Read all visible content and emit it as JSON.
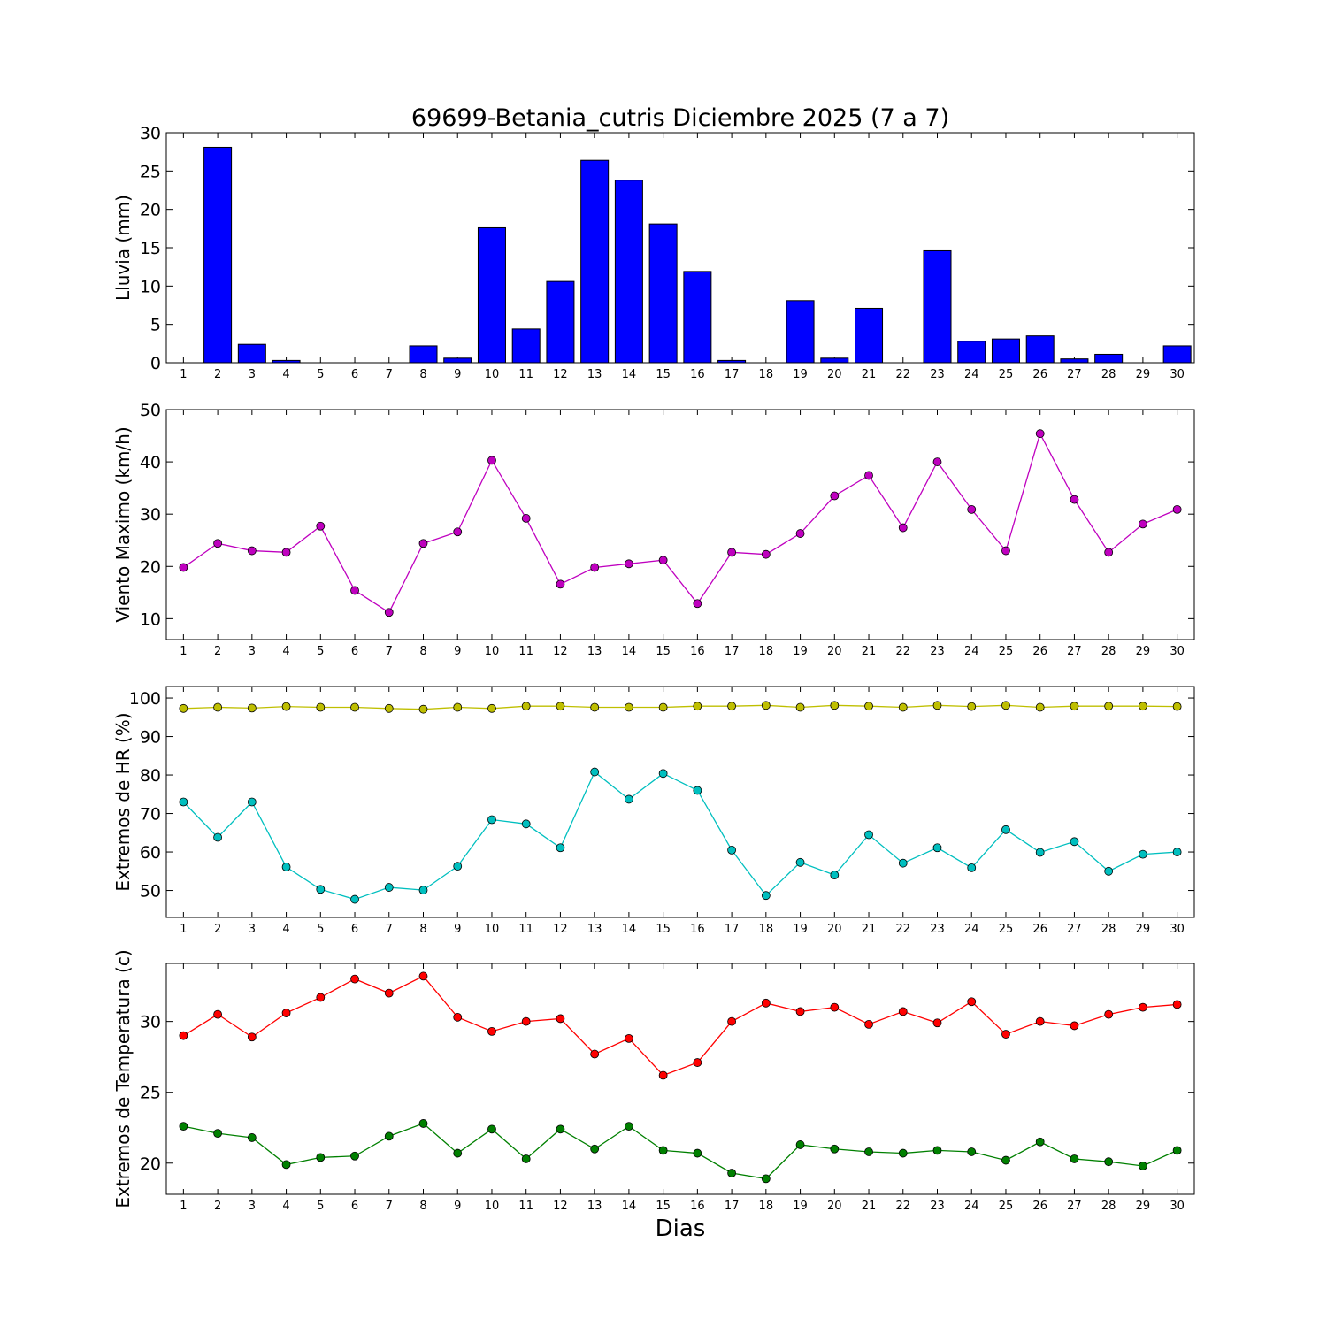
{
  "title": "69699-Betania_cutris Diciembre 2025  (7 a 7)",
  "xlabel": "Dias",
  "colors": {
    "rain": "#0000ff",
    "wind": "#bf00bf",
    "hr_max": "#bfbf00",
    "hr_min": "#00bfbf",
    "temp_max": "#ff0000",
    "temp_min": "#008000"
  },
  "chart_data": [
    {
      "type": "bar",
      "ylabel": "Lluvia (mm)",
      "categories": [
        "1",
        "2",
        "3",
        "4",
        "5",
        "6",
        "7",
        "8",
        "9",
        "10",
        "11",
        "12",
        "13",
        "14",
        "15",
        "16",
        "17",
        "18",
        "19",
        "20",
        "21",
        "22",
        "23",
        "24",
        "25",
        "26",
        "27",
        "28",
        "29",
        "30"
      ],
      "values": [
        0,
        28.1,
        2.4,
        0.3,
        0,
        0,
        0,
        2.2,
        0.6,
        17.6,
        4.4,
        10.6,
        26.4,
        23.8,
        18.1,
        11.9,
        0.3,
        0,
        8.1,
        0.6,
        7.1,
        0,
        14.6,
        2.8,
        3.1,
        3.5,
        0.5,
        1.1,
        0,
        2.2
      ],
      "ylim": [
        0,
        30
      ],
      "yticks": [
        0,
        5,
        10,
        15,
        20,
        25,
        30
      ],
      "grid": false
    },
    {
      "type": "line",
      "ylabel": "Viento Maximo (km/h)",
      "x": [
        1,
        2,
        3,
        4,
        5,
        6,
        7,
        8,
        9,
        10,
        11,
        12,
        13,
        14,
        15,
        16,
        17,
        18,
        19,
        20,
        21,
        22,
        23,
        24,
        25,
        26,
        27,
        28,
        29,
        30
      ],
      "series": [
        {
          "values": [
            19.8,
            24.4,
            23.0,
            22.7,
            27.7,
            15.4,
            11.2,
            24.4,
            26.6,
            40.3,
            29.2,
            16.6,
            19.8,
            20.5,
            21.2,
            12.9,
            22.7,
            22.3,
            26.3,
            33.5,
            37.4,
            27.4,
            40.0,
            30.9,
            23.0,
            45.4,
            32.8,
            22.7,
            28.1,
            30.9
          ]
        }
      ],
      "ylim": [
        6,
        50
      ],
      "yticks": [
        10,
        20,
        30,
        40,
        50
      ],
      "grid": false
    },
    {
      "type": "line",
      "ylabel": "Extremos de HR (%)",
      "x": [
        1,
        2,
        3,
        4,
        5,
        6,
        7,
        8,
        9,
        10,
        11,
        12,
        13,
        14,
        15,
        16,
        17,
        18,
        19,
        20,
        21,
        22,
        23,
        24,
        25,
        26,
        27,
        28,
        29,
        30
      ],
      "series": [
        {
          "values": [
            97.3,
            97.6,
            97.4,
            97.8,
            97.6,
            97.6,
            97.3,
            97.1,
            97.6,
            97.3,
            97.9,
            97.9,
            97.6,
            97.6,
            97.6,
            97.9,
            97.9,
            98.1,
            97.6,
            98.1,
            97.9,
            97.6,
            98.1,
            97.8,
            98.1,
            97.6,
            97.9,
            97.9,
            97.9,
            97.8
          ]
        },
        {
          "values": [
            73.0,
            63.8,
            73.0,
            56.1,
            50.3,
            47.7,
            50.8,
            50.1,
            56.3,
            68.4,
            67.3,
            61.1,
            80.8,
            73.7,
            80.4,
            76.0,
            60.5,
            48.7,
            57.3,
            54.0,
            64.5,
            57.1,
            61.1,
            55.9,
            65.8,
            59.9,
            62.7,
            55.0,
            59.4,
            60.0
          ]
        }
      ],
      "ylim": [
        43,
        103
      ],
      "yticks": [
        50,
        60,
        70,
        80,
        90,
        100
      ],
      "grid": false
    },
    {
      "type": "line",
      "ylabel": "Extremos de Temperatura (c)",
      "x": [
        1,
        2,
        3,
        4,
        5,
        6,
        7,
        8,
        9,
        10,
        11,
        12,
        13,
        14,
        15,
        16,
        17,
        18,
        19,
        20,
        21,
        22,
        23,
        24,
        25,
        26,
        27,
        28,
        29,
        30
      ],
      "series": [
        {
          "values": [
            29.0,
            30.5,
            28.9,
            30.6,
            31.7,
            33.0,
            32.0,
            33.2,
            30.3,
            29.3,
            30.0,
            30.2,
            27.7,
            28.8,
            26.2,
            27.1,
            30.0,
            31.3,
            30.7,
            31.0,
            29.8,
            30.7,
            29.9,
            31.4,
            29.1,
            30.0,
            29.7,
            30.5,
            31.0,
            31.2
          ]
        },
        {
          "values": [
            22.6,
            22.1,
            21.8,
            19.9,
            20.4,
            20.5,
            21.9,
            22.8,
            20.7,
            22.4,
            20.3,
            22.4,
            21.0,
            22.6,
            20.9,
            20.7,
            19.3,
            18.9,
            21.3,
            21.0,
            20.8,
            20.7,
            20.9,
            20.8,
            20.2,
            21.5,
            20.3,
            20.1,
            19.8,
            20.9
          ]
        }
      ],
      "ylim": [
        17.8,
        34.1
      ],
      "yticks": [
        20,
        25,
        30
      ],
      "grid": false
    }
  ]
}
